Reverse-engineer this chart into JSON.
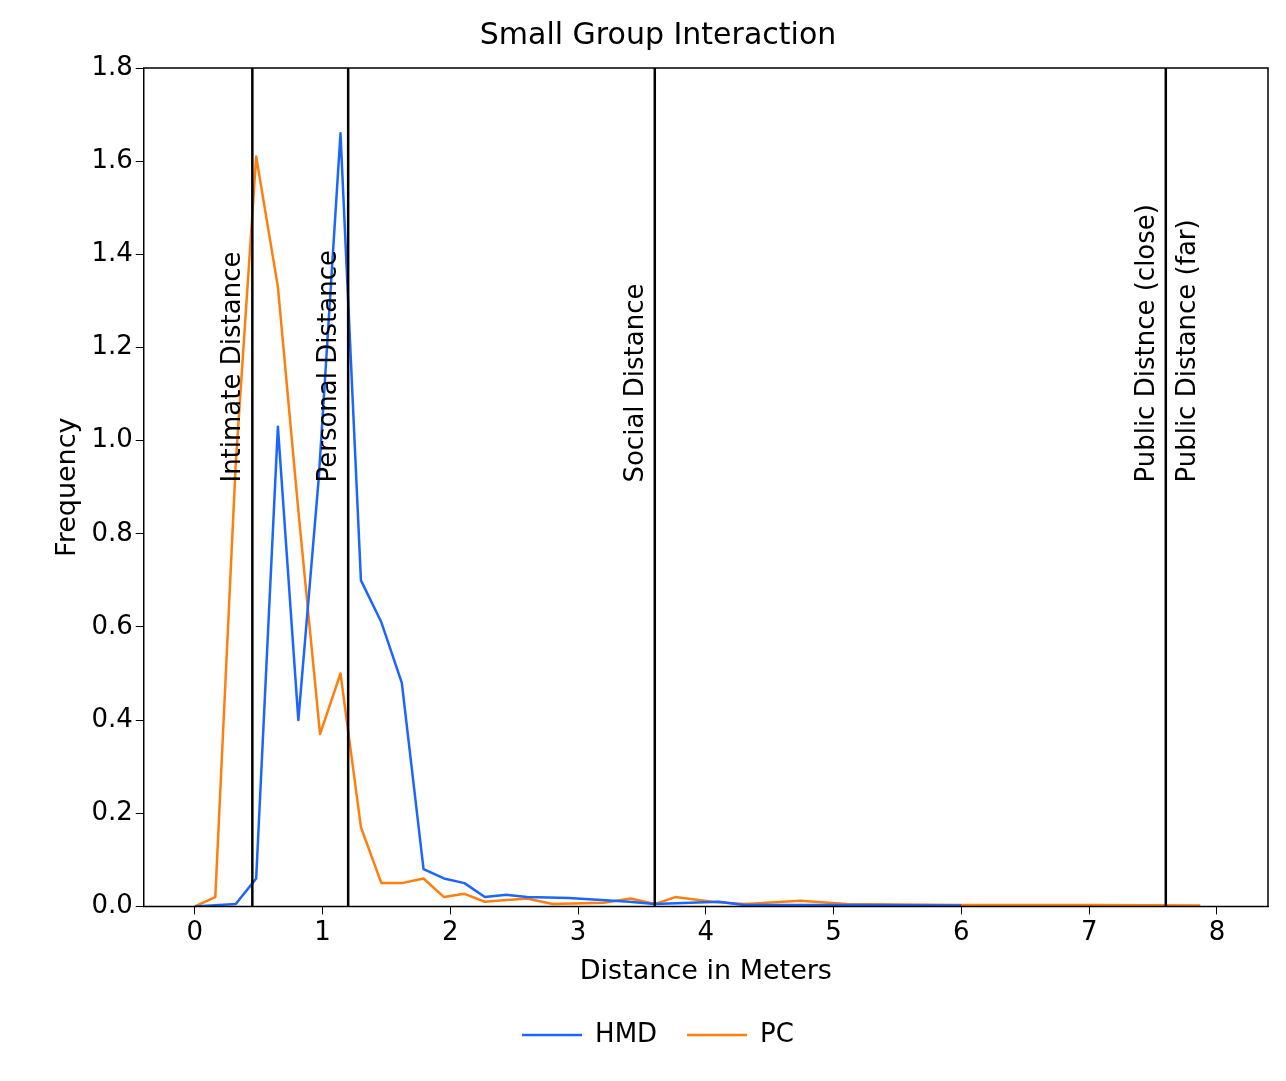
{
  "chart_data": {
    "type": "line",
    "title": "Small Group Interaction",
    "xlabel": "Distance in Meters",
    "ylabel": "Frequency",
    "series": [
      {
        "name": "HMD",
        "color": "#1a66ff",
        "x": [
          0,
          0.32,
          0.48,
          0.65,
          0.81,
          0.97,
          1.14,
          1.3,
          1.46,
          1.62,
          1.79,
          1.95,
          2.11,
          2.27,
          2.44,
          2.6,
          2.93,
          3.4,
          3.6,
          4.1,
          4.3,
          5,
          6
        ],
        "values": [
          0,
          0.005,
          0.06,
          1.03,
          0.4,
          0.92,
          1.66,
          0.7,
          0.61,
          0.48,
          0.08,
          0.06,
          0.05,
          0.02,
          0.025,
          0.02,
          0.018,
          0.01,
          0.005,
          0.01,
          0.003,
          0.003,
          0.002
        ]
      },
      {
        "name": "PC",
        "color": "#ff7f0e",
        "x": [
          0,
          0.16,
          0.32,
          0.48,
          0.65,
          0.81,
          0.98,
          1.14,
          1.3,
          1.46,
          1.62,
          1.79,
          1.95,
          2.11,
          2.27,
          2.6,
          2.8,
          3.2,
          3.41,
          3.6,
          3.76,
          4.05,
          4.3,
          4.74,
          5.1,
          6,
          7,
          7.87
        ],
        "values": [
          0,
          0.02,
          0.95,
          1.61,
          1.33,
          0.85,
          0.37,
          0.5,
          0.17,
          0.05,
          0.05,
          0.06,
          0.02,
          0.027,
          0.01,
          0.017,
          0.005,
          0.008,
          0.017,
          0.005,
          0.02,
          0.01,
          0.005,
          0.012,
          0.005,
          0.003,
          0.003,
          0.002
        ]
      }
    ],
    "xlim": [
      -0.4,
      8.4
    ],
    "xticks": [
      0,
      1,
      2,
      3,
      4,
      5,
      6,
      7,
      8
    ],
    "ylim": [
      0,
      1.8
    ],
    "yticks": [
      {
        "value": 0,
        "label": "0.0"
      },
      {
        "value": 0.2,
        "label": "0.2"
      },
      {
        "value": 0.4,
        "label": "0.4"
      },
      {
        "value": 0.6,
        "label": "0.6"
      },
      {
        "value": 0.8,
        "label": "0.8"
      },
      {
        "value": 1,
        "label": "1.0"
      },
      {
        "value": 1.2,
        "label": "1.2"
      },
      {
        "value": 1.4,
        "label": "1.4"
      },
      {
        "value": 1.6,
        "label": "1.6"
      },
      {
        "value": 1.8,
        "label": "1.8"
      }
    ],
    "ref_lines": [
      {
        "axis": "x",
        "value": 0.45,
        "label": "Intimate Distance",
        "color": "#000000"
      },
      {
        "axis": "x",
        "value": 1.2,
        "label": "Personal Distance",
        "color": "#000000"
      },
      {
        "axis": "x",
        "value": 3.6,
        "label": "Social Distance",
        "color": "#000000"
      },
      {
        "axis": "x",
        "value": 7.6,
        "label": "Public Distnce (close)",
        "color": "#000000"
      }
    ],
    "annotations": [
      "Public Distance (far)"
    ],
    "grid": false,
    "legend": "bottom",
    "marker": "none",
    "line_style": "solid"
  }
}
